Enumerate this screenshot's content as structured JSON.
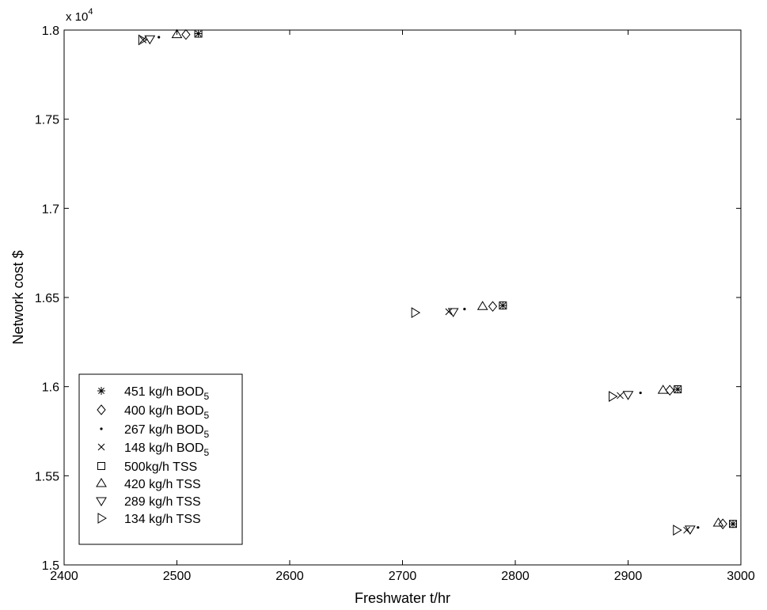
{
  "chart_data": {
    "type": "scatter",
    "title": "",
    "xlabel": "Freshwater t/hr",
    "ylabel": "Network cost $",
    "y_exponent_label": "x 10",
    "y_exponent_power": "4",
    "xlim": [
      2400,
      3000
    ],
    "ylim": [
      1.5,
      1.8
    ],
    "xticks": [
      2400,
      2500,
      2600,
      2700,
      2800,
      2900,
      3000
    ],
    "xtick_labels": [
      "2400",
      "2500",
      "2600",
      "2700",
      "2800",
      "2900",
      "3000"
    ],
    "yticks": [
      1.5,
      1.55,
      1.6,
      1.65,
      1.7,
      1.75,
      1.8
    ],
    "ytick_labels": [
      "1.5",
      "1.55",
      "1.6",
      "1.65",
      "1.7",
      "1.75",
      "1.8"
    ],
    "grid": false,
    "legend_position": "bottom-left",
    "series": [
      {
        "name": "451 kg/h BOD",
        "sub": "5",
        "marker": "asterisk",
        "x": [
          2519,
          2789,
          2944,
          2993
        ],
        "y": [
          1.798,
          1.6455,
          1.5985,
          1.523
        ]
      },
      {
        "name": "400 kg/h BOD",
        "sub": "5",
        "marker": "diamond",
        "x": [
          2508,
          2780,
          2937,
          2984
        ],
        "y": [
          1.7975,
          1.645,
          1.598,
          1.523
        ]
      },
      {
        "name": "267 kg/h BOD",
        "sub": "5",
        "marker": "dot",
        "x": [
          2484,
          2755,
          2911,
          2962
        ],
        "y": [
          1.796,
          1.6435,
          1.5965,
          1.521
        ]
      },
      {
        "name": "148 kg/h BOD",
        "sub": "5",
        "marker": "x",
        "x": [
          2470,
          2741,
          2893,
          2952
        ],
        "y": [
          1.7945,
          1.642,
          1.595,
          1.5195
        ]
      },
      {
        "name": "500kg/h TSS",
        "sub": "",
        "marker": "square",
        "x": [
          2519,
          2789,
          2944,
          2993
        ],
        "y": [
          1.798,
          1.6455,
          1.5985,
          1.523
        ]
      },
      {
        "name": "420 kg/h TSS",
        "sub": "",
        "marker": "triangle-up",
        "x": [
          2500,
          2771,
          2931,
          2980
        ],
        "y": [
          1.7975,
          1.645,
          1.598,
          1.5235
        ]
      },
      {
        "name": "289 kg/h TSS",
        "sub": "",
        "marker": "triangle-down",
        "x": [
          2476,
          2745,
          2900,
          2955
        ],
        "y": [
          1.795,
          1.642,
          1.5955,
          1.52
        ]
      },
      {
        "name": "134 kg/h TSS",
        "sub": "",
        "marker": "triangle-right",
        "x": [
          2469,
          2711,
          2886,
          2943
        ],
        "y": [
          1.7945,
          1.6415,
          1.5945,
          1.5195
        ]
      }
    ]
  }
}
